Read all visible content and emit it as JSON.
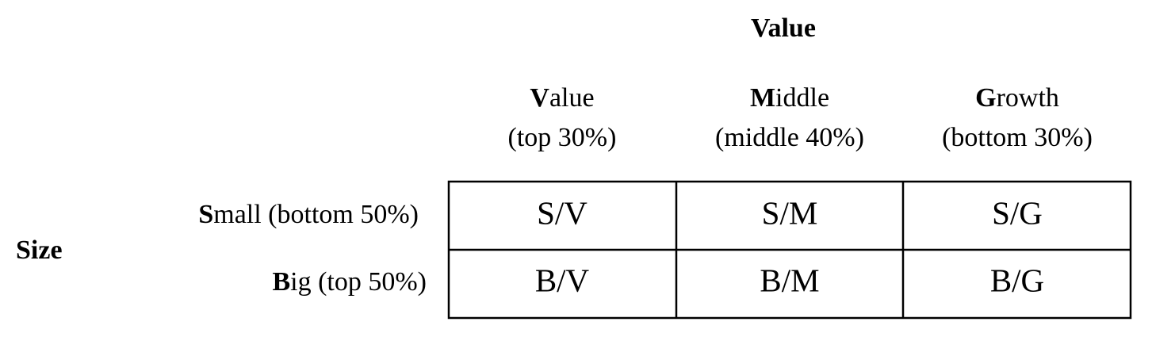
{
  "title": "Value",
  "row_axis_label": "Size",
  "columns": [
    {
      "name": "Value",
      "range": "(top 30%)"
    },
    {
      "name": "Middle",
      "range": "(middle 40%)"
    },
    {
      "name": "Growth",
      "range": "(bottom 30%)"
    }
  ],
  "rows": [
    {
      "label": "Small (bottom 50%)",
      "cells": [
        "S/V",
        "S/M",
        "S/G"
      ]
    },
    {
      "label": "Big (top 50%)",
      "cells": [
        "B/V",
        "B/M",
        "B/G"
      ]
    }
  ]
}
